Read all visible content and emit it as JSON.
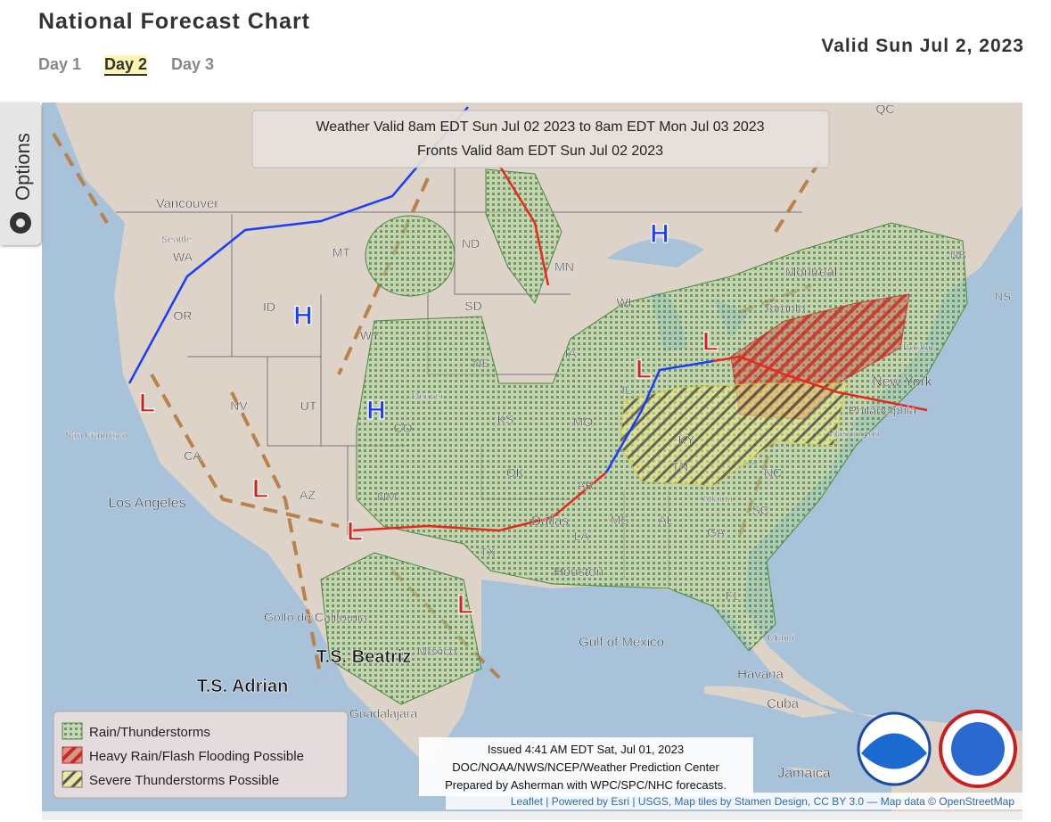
{
  "header": {
    "title": "National Forecast Chart",
    "tabs": [
      "Day 1",
      "Day 2",
      "Day 3"
    ],
    "valid": "Valid Sun Jul 2, 2023"
  },
  "options": {
    "label": "Options"
  },
  "map": {
    "validity": [
      "Weather Valid 8am EDT Sun Jul 02 2023 to 8am EDT Mon Jul 03 2023",
      "Fronts Valid 8am EDT Sun Jul 02 2023"
    ],
    "labels": [
      "Vancouver",
      "Seattle",
      "WA",
      "MT",
      "ND",
      "MN",
      "WI",
      "OR",
      "ID",
      "WY",
      "SD",
      "IA",
      "NE",
      "San Francisco",
      "NV",
      "UT",
      "CO",
      "Denver",
      "KS",
      "MO",
      "CA",
      "Los Angeles",
      "AZ",
      "NM",
      "OK",
      "AR",
      "TX",
      "Dallas",
      "LA",
      "MS",
      "AL",
      "GA",
      "Atlanta",
      "NC",
      "SC",
      "FL",
      "Houston",
      "Miami",
      "Havana",
      "Cuba",
      "Jamaica",
      "Montreal",
      "Toronto",
      "Boston",
      "New York",
      "Philadelphia",
      "Washington",
      "KY",
      "TN",
      "IL",
      "QC",
      "NB",
      "NS",
      "Gulf of Mexico",
      "Golfo de California",
      "Mexico",
      "Guadalajara"
    ],
    "centers": [
      "H",
      "H",
      "H",
      "L",
      "L",
      "L",
      "L",
      "L",
      "L"
    ],
    "storms": [
      "T.S. Adrian",
      "T.S. Beatriz"
    ]
  },
  "legend": {
    "items": [
      "Rain/Thunderstorms",
      "Heavy Rain/Flash Flooding Possible",
      "Severe Thunderstorms Possible"
    ]
  },
  "issued": {
    "lines": [
      "Issued 4:41 AM EDT Sat, Jul 01, 2023",
      "DOC/NOAA/NWS/NCEP/Weather Prediction Center",
      "Prepared by Asherman with WPC/SPC/NHC forecasts."
    ]
  },
  "attribution": "Leaflet | Powered by Esri | USGS, Map tiles by Stamen Design, CC BY 3.0 — Map data © OpenStreetMap"
}
